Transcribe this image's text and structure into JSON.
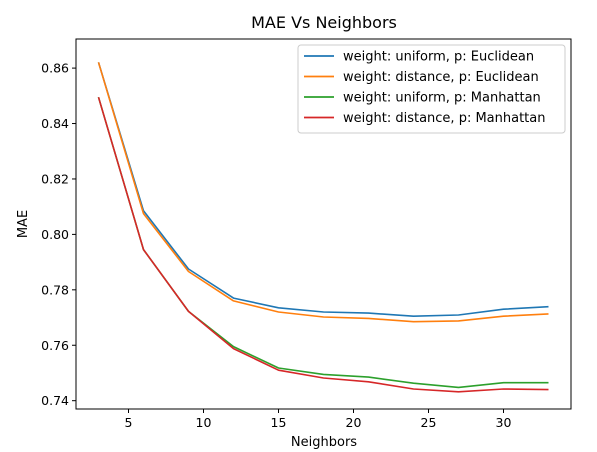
{
  "chart_data": {
    "type": "line",
    "title": "MAE Vs Neighbors",
    "xlabel": "Neighbors",
    "ylabel": "MAE",
    "xlim": [
      1.5,
      34.5
    ],
    "ylim": [
      0.737,
      0.8705
    ],
    "xticks": [
      5,
      10,
      15,
      20,
      25,
      30
    ],
    "yticks": [
      0.74,
      0.76,
      0.78,
      0.8,
      0.82,
      0.84,
      0.86
    ],
    "grid": false,
    "legend_position": "top-right",
    "x": [
      3,
      6,
      9,
      12,
      15,
      18,
      21,
      24,
      27,
      30,
      33
    ],
    "series": [
      {
        "name": "weight: uniform, p: Euclidean",
        "color": "#1f77b4",
        "values": [
          0.8621,
          0.8085,
          0.7875,
          0.777,
          0.7735,
          0.772,
          0.7716,
          0.7705,
          0.7709,
          0.773,
          0.7739
        ]
      },
      {
        "name": "weight: distance, p: Euclidean",
        "color": "#ff7f0e",
        "values": [
          0.8621,
          0.8075,
          0.7866,
          0.776,
          0.772,
          0.7702,
          0.7697,
          0.7685,
          0.7688,
          0.7705,
          0.7713
        ]
      },
      {
        "name": "weight: uniform, p: Manhattan",
        "color": "#2ca02c",
        "values": [
          0.8495,
          0.7945,
          0.7722,
          0.7595,
          0.7518,
          0.7495,
          0.7485,
          0.7463,
          0.7448,
          0.7465,
          0.7465
        ]
      },
      {
        "name": "weight: distance, p: Manhattan",
        "color": "#d62728",
        "values": [
          0.8495,
          0.7945,
          0.7722,
          0.7588,
          0.751,
          0.7482,
          0.7468,
          0.7442,
          0.7432,
          0.7442,
          0.744
        ]
      }
    ]
  }
}
